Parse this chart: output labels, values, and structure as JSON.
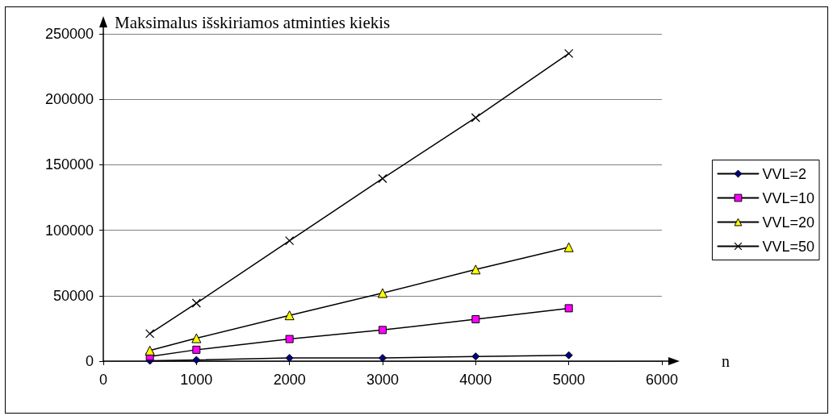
{
  "chart_data": {
    "type": "line",
    "ylabel": "Maksimalus išskiriamos atminties kiekis",
    "xlabel": "n",
    "x": [
      500,
      1000,
      2000,
      3000,
      4000,
      5000
    ],
    "series": [
      {
        "name": "VVL=2",
        "color": "#000080",
        "marker": "diamond",
        "values": [
          300,
          900,
          2400,
          2400,
          3600,
          4500
        ]
      },
      {
        "name": "VVL=10",
        "color": "#ff00ff",
        "marker": "square",
        "values": [
          3600,
          8700,
          16900,
          23800,
          32000,
          40400
        ]
      },
      {
        "name": "VVL=20",
        "color": "#ffff00",
        "marker": "triangle",
        "values": [
          8100,
          17500,
          35000,
          52000,
          70000,
          87000
        ]
      },
      {
        "name": "VVL=50",
        "color": "#000000",
        "marker": "cross",
        "values": [
          21000,
          44300,
          92000,
          139500,
          186000,
          235000
        ]
      }
    ],
    "xlim": [
      0,
      6000
    ],
    "xticks": [
      0,
      1000,
      2000,
      3000,
      4000,
      5000,
      6000
    ],
    "ylim": [
      0,
      250000
    ],
    "yticks": [
      0,
      50000,
      100000,
      150000,
      200000,
      250000
    ],
    "grid": "y",
    "legend": "right",
    "line_style": "solid"
  }
}
